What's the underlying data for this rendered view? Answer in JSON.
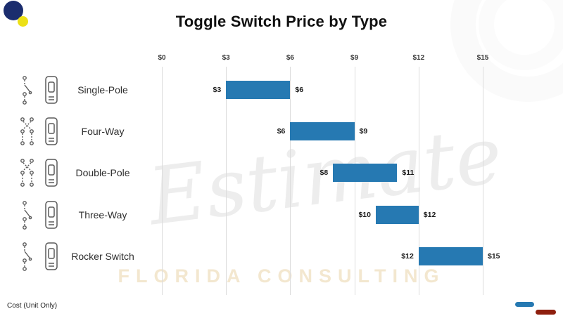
{
  "title": "Toggle Switch Price by Type",
  "footer": {
    "note": "Cost (Unit Only)"
  },
  "watermark": {
    "script": "Estimate",
    "subtitle": "FLORIDA CONSULTING"
  },
  "colors": {
    "bar": "#2679b2",
    "accent_blue": "#2679b2",
    "accent_red": "#8e1f0e",
    "deco_navy": "#1b2d6e",
    "deco_yellow": "#ece016",
    "gridline": "#dcdcdc"
  },
  "chart_data": {
    "type": "bar",
    "orientation": "horizontal-range",
    "title": "Toggle Switch Price by Type",
    "categories": [
      "Single-Pole",
      "Four-Way",
      "Double-Pole",
      "Three-Way",
      "Rocker Switch"
    ],
    "ranges": [
      [
        3,
        6
      ],
      [
        6,
        9
      ],
      [
        8,
        11
      ],
      [
        10,
        12
      ],
      [
        12,
        15
      ]
    ],
    "bar_labels": [
      [
        "$3",
        "$6"
      ],
      [
        "$6",
        "$9"
      ],
      [
        "$8",
        "$11"
      ],
      [
        "$10",
        "$12"
      ],
      [
        "$12",
        "$15"
      ]
    ],
    "x_ticks": [
      "$0",
      "$3",
      "$6",
      "$9",
      "$12",
      "$15"
    ],
    "x_tick_values": [
      0,
      3,
      6,
      9,
      12,
      15
    ],
    "xlim": [
      0,
      15
    ],
    "grid": true,
    "legend_position": "none",
    "xlabel": "",
    "ylabel": ""
  }
}
